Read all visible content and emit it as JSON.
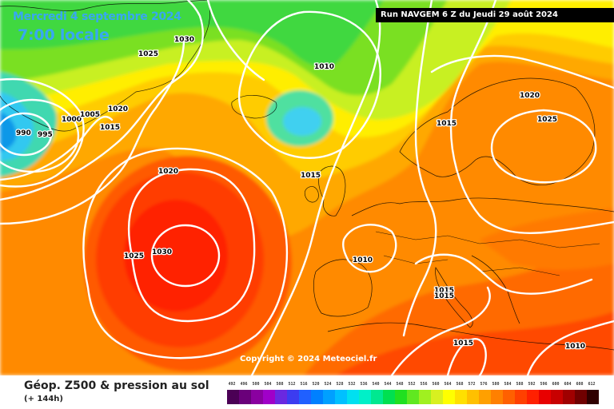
{
  "header": {
    "date": "Mercredi 4 septembre 2024",
    "time": "7:00 locale",
    "run": "Run NAVGEM 6 Z du Jeudi 29 août 2024"
  },
  "copyright": "Copyright © 2024 Meteociel.fr",
  "footer": {
    "title": "Géop. Z500 & pression au sol",
    "subtitle": "(+ 144h)"
  },
  "legend": {
    "values": [
      "492",
      "496",
      "500",
      "504",
      "508",
      "512",
      "516",
      "520",
      "524",
      "528",
      "532",
      "536",
      "540",
      "544",
      "548",
      "552",
      "556",
      "560",
      "564",
      "568",
      "572",
      "576",
      "580",
      "584",
      "588",
      "592",
      "596",
      "600",
      "604",
      "608",
      "612"
    ],
    "colors": [
      "#4b0055",
      "#6a007a",
      "#8a00a0",
      "#a000c8",
      "#6a28e0",
      "#3c3cf0",
      "#2060ff",
      "#0080ff",
      "#00a0ff",
      "#00c0ff",
      "#00e0f0",
      "#00f0c8",
      "#00e890",
      "#00e050",
      "#20e020",
      "#60e820",
      "#a0f020",
      "#d8f020",
      "#ffff00",
      "#ffe000",
      "#ffc000",
      "#ffa000",
      "#ff8000",
      "#ff6000",
      "#ff4000",
      "#ff2000",
      "#e80000",
      "#c80000",
      "#a00000",
      "#700000",
      "#300000"
    ]
  },
  "isobars": [
    {
      "label": "1030"
    },
    {
      "label": "1025"
    },
    {
      "label": "1010"
    },
    {
      "label": "1020"
    },
    {
      "label": "1025"
    },
    {
      "label": "990"
    },
    {
      "label": "995"
    },
    {
      "label": "1000"
    },
    {
      "label": "1005"
    },
    {
      "label": "1020"
    },
    {
      "label": "1015"
    },
    {
      "label": "1015"
    },
    {
      "label": "1020"
    },
    {
      "label": "1015"
    },
    {
      "label": "1025"
    },
    {
      "label": "1030"
    },
    {
      "label": "1010"
    },
    {
      "label": "1015"
    },
    {
      "label": "1015"
    },
    {
      "label": "1015"
    },
    {
      "label": "1010"
    }
  ]
}
